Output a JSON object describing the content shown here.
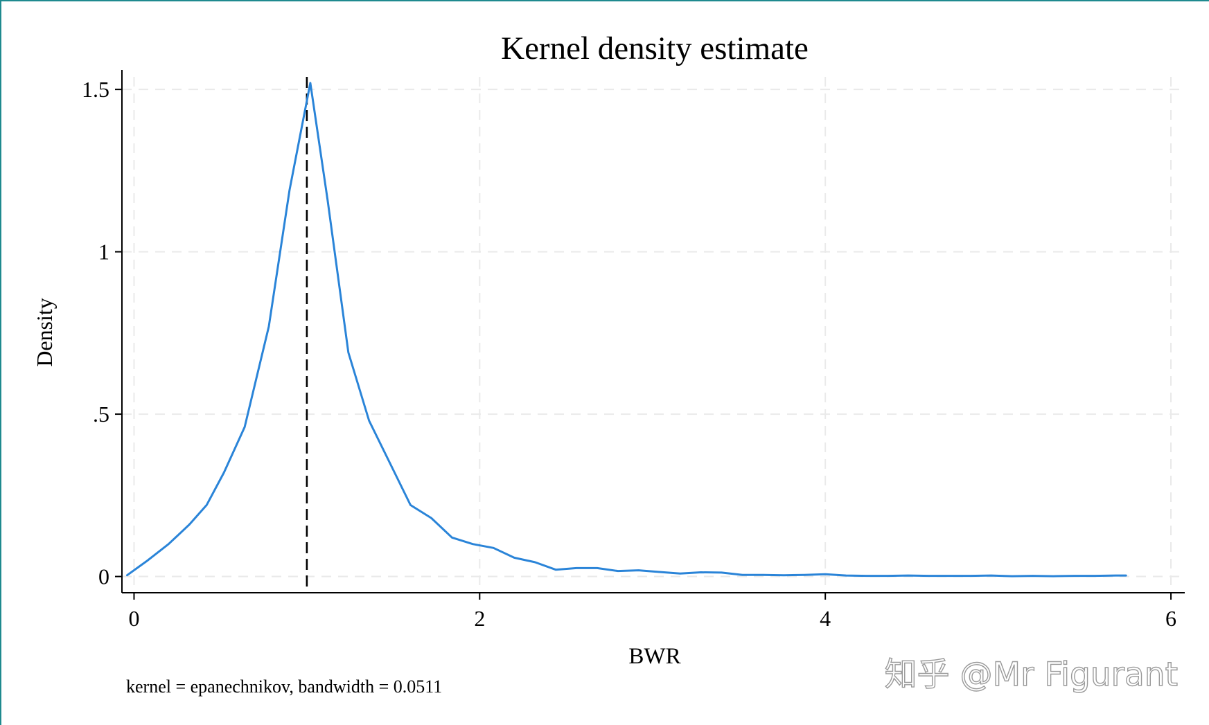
{
  "chart_data": {
    "type": "line",
    "title": "Kernel density estimate",
    "xlabel": "BWR",
    "ylabel": "Density",
    "note": "kernel = epanechnikov, bandwidth = 0.0511",
    "xlim": [
      -0.07,
      6.08
    ],
    "ylim": [
      -0.05,
      1.56
    ],
    "x_ticks": [
      0,
      2,
      4,
      6
    ],
    "x_tick_labels": [
      "0",
      "2",
      "4",
      "6"
    ],
    "y_ticks": [
      0,
      0.5,
      1,
      1.5
    ],
    "y_tick_labels": [
      "0",
      ".5",
      "1",
      "1.5"
    ],
    "grid": true,
    "reference_line": {
      "x": 1.0,
      "style": "dashed",
      "color": "#000000"
    },
    "series": [
      {
        "name": "Density",
        "color": "#2a84d8",
        "x": [
          -0.04,
          0.08,
          0.2,
          0.32,
          0.42,
          0.52,
          0.64,
          0.78,
          0.9,
          1.02,
          1.12,
          1.24,
          1.36,
          1.48,
          1.6,
          1.72,
          1.84,
          1.96,
          2.08,
          2.2,
          2.32,
          2.44,
          2.56,
          2.68,
          2.8,
          2.92,
          3.04,
          3.16,
          3.28,
          3.4,
          3.52,
          3.64,
          3.76,
          3.88,
          4.0,
          4.12,
          4.24,
          4.36,
          4.48,
          4.6,
          4.72,
          4.84,
          4.96,
          5.08,
          5.2,
          5.32,
          5.44,
          5.56,
          5.68,
          5.74
        ],
        "values": [
          0.004,
          0.05,
          0.1,
          0.16,
          0.22,
          0.32,
          0.46,
          0.77,
          1.19,
          1.52,
          1.16,
          0.69,
          0.48,
          0.35,
          0.22,
          0.18,
          0.12,
          0.1,
          0.088,
          0.058,
          0.044,
          0.021,
          0.026,
          0.026,
          0.017,
          0.019,
          0.014,
          0.009,
          0.013,
          0.012,
          0.005,
          0.005,
          0.004,
          0.005,
          0.007,
          0.003,
          0.002,
          0.002,
          0.003,
          0.002,
          0.002,
          0.002,
          0.003,
          0.001,
          0.002,
          0.001,
          0.002,
          0.002,
          0.003,
          0.003
        ]
      }
    ]
  },
  "watermark": "知乎 @Mr Figurant",
  "colors": {
    "frame": "#1f8a8f",
    "grid": "#eaeaea",
    "axis": "#000000",
    "text": "#000000"
  }
}
